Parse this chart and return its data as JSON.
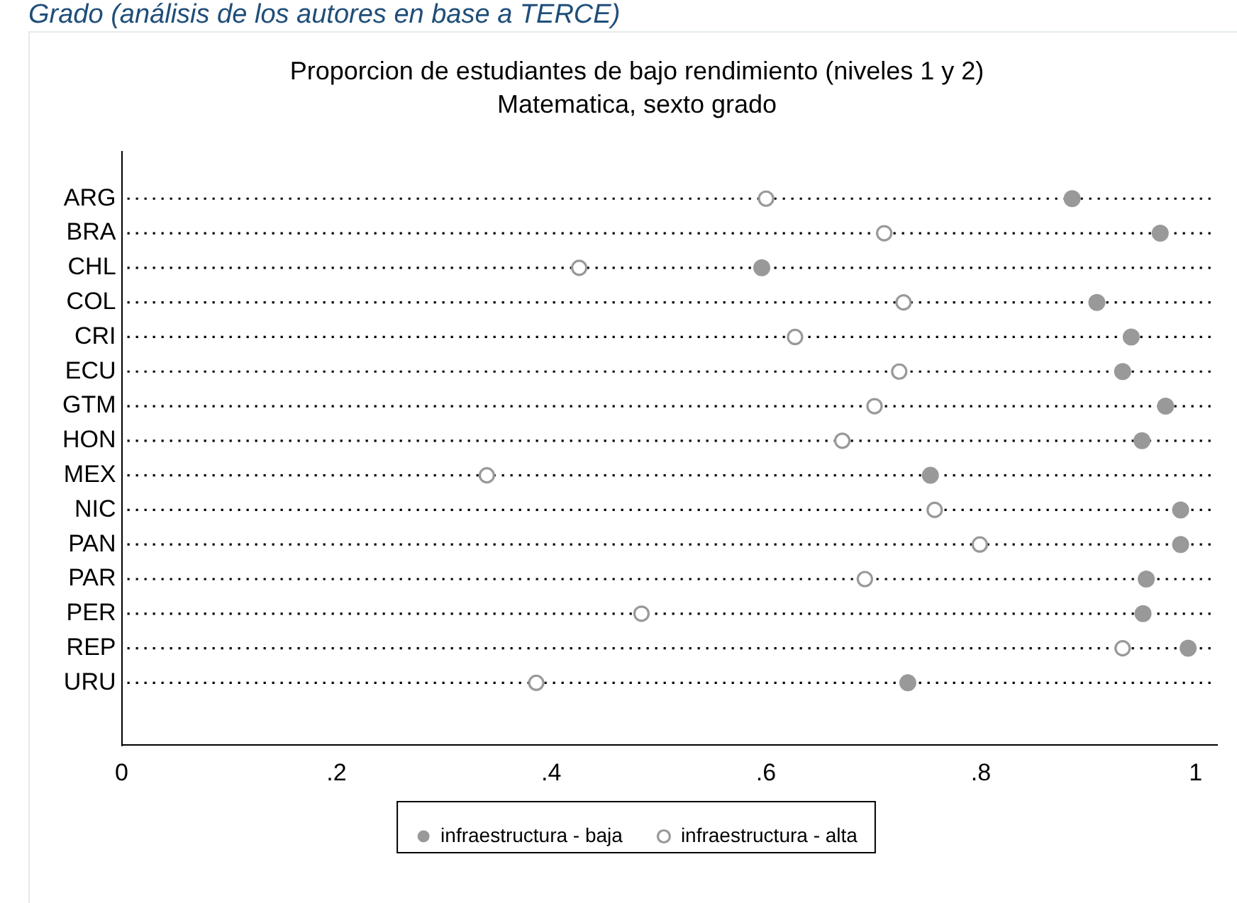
{
  "chart_data": {
    "type": "scatter",
    "title": "Proporcion de estudiantes de bajo rendimiento (niveles 1 y 2)",
    "subtitle": "Matematica, sexto grado",
    "annotations": [
      "Grado (análisis de los autores en base a TERCE)"
    ],
    "categories": [
      "ARG",
      "BRA",
      "CHL",
      "COL",
      "CRI",
      "ECU",
      "GTM",
      "HON",
      "MEX",
      "NIC",
      "PAN",
      "PAR",
      "PER",
      "REP",
      "URU"
    ],
    "orientation": "horizontal",
    "series": [
      {
        "name": "infraestructura - baja",
        "color": "#999999",
        "values": [
          0.885,
          0.967,
          0.596,
          0.908,
          0.94,
          0.932,
          0.972,
          0.95,
          0.753,
          0.986,
          0.986,
          0.954,
          0.951,
          0.993,
          0.732
        ]
      },
      {
        "name": "infraestructura - alta",
        "color": "#999999",
        "values": [
          0.6,
          0.71,
          0.426,
          0.728,
          0.627,
          0.724,
          0.701,
          0.671,
          0.34,
          0.757,
          0.799,
          0.692,
          0.484,
          0.932,
          0.386
        ]
      }
    ],
    "xlim": [
      0,
      1.02
    ],
    "xticks": [
      0,
      {
        "value": 0.2,
        "label": ".2"
      },
      {
        "value": 0.4,
        "label": ".4"
      },
      {
        "value": 0.6,
        "label": ".6"
      },
      {
        "value": 0.8,
        "label": ".8"
      },
      1
    ],
    "grid": "y",
    "legend": "bottom",
    "marker": "circle"
  }
}
